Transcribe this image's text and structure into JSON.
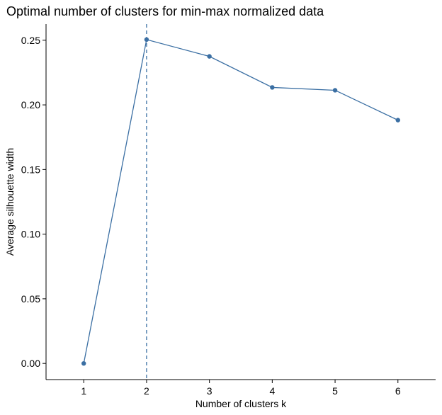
{
  "chart_data": {
    "type": "line",
    "title": "Optimal number of clusters for min-max normalized data",
    "xlabel": "Number of clusters k",
    "ylabel": "Average silhouette width",
    "x": [
      "1",
      "2",
      "3",
      "4",
      "5",
      "6"
    ],
    "series": [
      {
        "values": [
          0.0,
          0.2505,
          0.2375,
          0.2135,
          0.2113,
          0.1882
        ]
      }
    ],
    "reference_line": {
      "orientation": "vertical",
      "x": "2",
      "style": "dashed"
    },
    "yticks": [
      "0.00",
      "0.05",
      "0.10",
      "0.15",
      "0.20",
      "0.25"
    ],
    "ylim": [
      -0.0125,
      0.2625
    ],
    "grid": false,
    "legend": "none",
    "colors": {
      "series": "#3B6FA3",
      "axis": "#000000"
    }
  }
}
